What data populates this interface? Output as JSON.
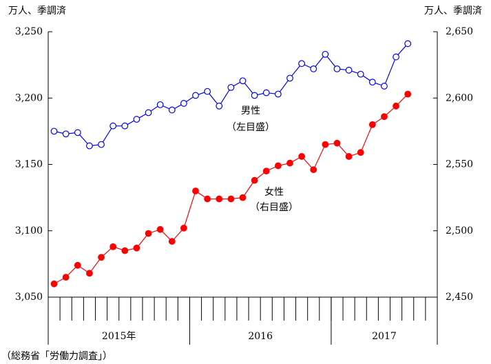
{
  "chart_data": {
    "type": "line",
    "y_axis_label": "万人、季調済",
    "y2_axis_label": "万人、季調済",
    "source": "（総務省「労働力調査」）",
    "annotations": [
      "男性",
      "（左目盛）",
      "女性",
      "（右目盛）"
    ],
    "categories": [
      null,
      null,
      null,
      null,
      null,
      null,
      null,
      null,
      null,
      null,
      null,
      null,
      null,
      null,
      null,
      null,
      null,
      null,
      null,
      null,
      null,
      null,
      null,
      null,
      null,
      null,
      null,
      null,
      null,
      null,
      null,
      null,
      null
    ],
    "x_groups": [
      {
        "label": "2015年",
        "span": 12
      },
      {
        "label": "2016",
        "span": 12
      },
      {
        "label": "2017",
        "span": 9
      }
    ],
    "series": [
      {
        "name": "男性",
        "color": "#0000ff",
        "filled": false,
        "values": [
          3175,
          3173,
          3174,
          3164,
          3165,
          3179,
          3179,
          3184,
          3189,
          3195,
          3191,
          3196,
          3202,
          3205,
          3194,
          3208,
          3213,
          3202,
          3204,
          3203,
          3215,
          3226,
          3222,
          3233,
          3222,
          3221,
          3218,
          3212,
          3209,
          3231,
          3241,
          null,
          null
        ]
      },
      {
        "name": "女性",
        "color": "#ff0000",
        "filled": true,
        "axis": "y2",
        "values": [
          2460,
          2465,
          2474,
          2468,
          2480,
          2488,
          2485,
          2487,
          2498,
          2501,
          2492,
          2502,
          2530,
          2524,
          2524,
          2524,
          2525,
          2538,
          2545,
          2549,
          2551,
          2556,
          2546,
          2565,
          2566,
          2556,
          2559,
          2580,
          2586,
          2594,
          2603,
          null,
          null
        ]
      }
    ],
    "ylim": [
      3050,
      3250
    ],
    "yticks": [
      {
        "value": 3050,
        "label": "3,050"
      },
      {
        "value": 3100,
        "label": "3,100"
      },
      {
        "value": 3150,
        "label": "3,150"
      },
      {
        "value": 3200,
        "label": "3,200"
      },
      {
        "value": 3250,
        "label": "3,250"
      }
    ],
    "y2lim": [
      2450,
      2650
    ],
    "y2ticks": [
      {
        "value": 2450,
        "label": "2,450"
      },
      {
        "value": 2500,
        "label": "2,500"
      },
      {
        "value": 2550,
        "label": "2,550"
      },
      {
        "value": 2600,
        "label": "2,600"
      },
      {
        "value": 2650,
        "label": "2,650"
      }
    ]
  }
}
